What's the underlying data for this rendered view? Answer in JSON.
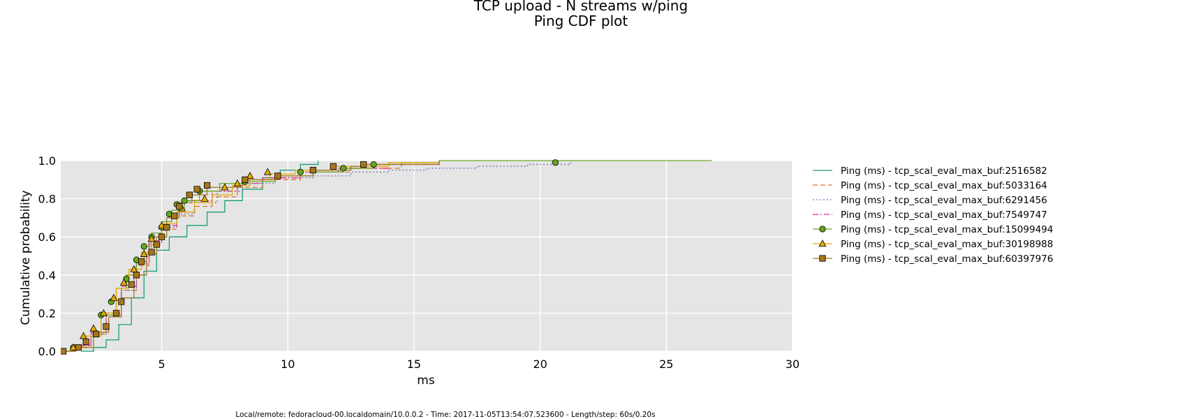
{
  "chart_data": {
    "type": "line",
    "title": "TCP upload - N streams w/ping",
    "subtitle": "Ping CDF plot",
    "xlabel": "ms",
    "ylabel": "Cumulative probability",
    "xlim": [
      1,
      30
    ],
    "ylim": [
      0,
      1
    ],
    "x_ticks": [
      5,
      10,
      15,
      20,
      25,
      30
    ],
    "y_ticks": [
      0.0,
      0.2,
      0.4,
      0.6,
      0.8,
      1.0
    ],
    "x_tick_labels": [
      "5",
      "10",
      "15",
      "20",
      "25",
      "30"
    ],
    "y_tick_labels": [
      "0.0",
      "0.2",
      "0.4",
      "0.6",
      "0.8",
      "1.0"
    ],
    "grid": true,
    "background_color": "#e5e5e5",
    "legend_position": "right-outside",
    "series": [
      {
        "name": "Ping (ms) - tcp_scal_eval_max_buf:2516582",
        "color": "#1b9e77",
        "dash": "solid",
        "marker": "none",
        "points": [
          [
            1.8,
            0.0
          ],
          [
            2.3,
            0.02
          ],
          [
            2.8,
            0.06
          ],
          [
            3.3,
            0.14
          ],
          [
            3.8,
            0.28
          ],
          [
            4.3,
            0.42
          ],
          [
            4.8,
            0.53
          ],
          [
            5.3,
            0.6
          ],
          [
            6.0,
            0.66
          ],
          [
            6.8,
            0.73
          ],
          [
            7.5,
            0.79
          ],
          [
            8.2,
            0.85
          ],
          [
            9.0,
            0.91
          ],
          [
            9.7,
            0.95
          ],
          [
            10.5,
            0.98
          ],
          [
            11.2,
            1.0
          ]
        ]
      },
      {
        "name": "Ping (ms) - tcp_scal_eval_max_buf:5033164",
        "color": "#e1722d",
        "dash": "dashed",
        "marker": "none",
        "points": [
          [
            1.1,
            0.0
          ],
          [
            1.6,
            0.03
          ],
          [
            2.2,
            0.09
          ],
          [
            2.8,
            0.19
          ],
          [
            3.4,
            0.32
          ],
          [
            4.0,
            0.45
          ],
          [
            4.5,
            0.56
          ],
          [
            5.0,
            0.64
          ],
          [
            5.6,
            0.71
          ],
          [
            6.3,
            0.76
          ],
          [
            7.0,
            0.81
          ],
          [
            8.0,
            0.86
          ],
          [
            9.0,
            0.9
          ],
          [
            10.5,
            0.94
          ],
          [
            12.5,
            0.96
          ],
          [
            14.5,
            0.98
          ],
          [
            16.0,
            1.0
          ]
        ]
      },
      {
        "name": "Ping (ms) - tcp_scal_eval_max_buf:6291456",
        "color": "#7570b3",
        "dash": "dotted",
        "marker": "none",
        "points": [
          [
            1.1,
            0.0
          ],
          [
            1.6,
            0.03
          ],
          [
            2.2,
            0.09
          ],
          [
            2.8,
            0.19
          ],
          [
            3.4,
            0.32
          ],
          [
            4.0,
            0.46
          ],
          [
            4.5,
            0.57
          ],
          [
            5.0,
            0.65
          ],
          [
            5.6,
            0.72
          ],
          [
            6.3,
            0.78
          ],
          [
            7.2,
            0.84
          ],
          [
            8.2,
            0.88
          ],
          [
            9.5,
            0.91
          ],
          [
            11.0,
            0.92
          ],
          [
            12.5,
            0.94
          ],
          [
            14.0,
            0.95
          ],
          [
            15.5,
            0.96
          ],
          [
            17.5,
            0.97
          ],
          [
            19.5,
            0.98
          ],
          [
            21.2,
            1.0
          ]
        ]
      },
      {
        "name": "Ping (ms) - tcp_scal_eval_max_buf:7549747",
        "color": "#e7298a",
        "dash": "dashdot",
        "marker": "none",
        "points": [
          [
            1.1,
            0.0
          ],
          [
            1.6,
            0.03
          ],
          [
            2.2,
            0.1
          ],
          [
            2.8,
            0.2
          ],
          [
            3.4,
            0.34
          ],
          [
            4.0,
            0.47
          ],
          [
            4.5,
            0.58
          ],
          [
            5.0,
            0.66
          ],
          [
            5.6,
            0.73
          ],
          [
            6.3,
            0.79
          ],
          [
            7.0,
            0.84
          ],
          [
            8.0,
            0.88
          ],
          [
            9.0,
            0.91
          ],
          [
            10.5,
            0.94
          ],
          [
            12.0,
            0.96
          ],
          [
            14.0,
            0.98
          ],
          [
            16.0,
            1.0
          ]
        ]
      },
      {
        "name": "Ping (ms) - tcp_scal_eval_max_buf:15099494",
        "color": "#66a61e",
        "dash": "solid",
        "marker": "circle",
        "points": [
          [
            1.1,
            0.0
          ],
          [
            1.5,
            0.02
          ],
          [
            2.0,
            0.08
          ],
          [
            2.6,
            0.19
          ],
          [
            3.2,
            0.33
          ],
          [
            3.6,
            0.4
          ],
          [
            4.0,
            0.48
          ],
          [
            4.3,
            0.55
          ],
          [
            4.6,
            0.62
          ],
          [
            5.0,
            0.68
          ],
          [
            5.4,
            0.74
          ],
          [
            5.9,
            0.79
          ],
          [
            6.5,
            0.84
          ],
          [
            7.3,
            0.88
          ],
          [
            8.3,
            0.89
          ],
          [
            9.5,
            0.92
          ],
          [
            11.0,
            0.94
          ],
          [
            12.2,
            0.96
          ],
          [
            13.4,
            0.98
          ],
          [
            14.5,
            0.99
          ],
          [
            16.0,
            1.0
          ],
          [
            20.6,
            1.0
          ],
          [
            26.8,
            1.0
          ]
        ],
        "marker_points": [
          [
            1.5,
            0.02
          ],
          [
            2.6,
            0.19
          ],
          [
            3.0,
            0.26
          ],
          [
            3.6,
            0.38
          ],
          [
            4.0,
            0.48
          ],
          [
            4.3,
            0.55
          ],
          [
            4.6,
            0.6
          ],
          [
            5.0,
            0.65
          ],
          [
            5.3,
            0.72
          ],
          [
            5.6,
            0.77
          ],
          [
            5.9,
            0.79
          ],
          [
            6.5,
            0.84
          ],
          [
            8.3,
            0.89
          ],
          [
            9.6,
            0.92
          ],
          [
            10.5,
            0.94
          ],
          [
            12.2,
            0.96
          ],
          [
            13.4,
            0.98
          ],
          [
            20.6,
            0.99
          ]
        ]
      },
      {
        "name": "Ping (ms) - tcp_scal_eval_max_buf:30198988",
        "color": "#e6ab02",
        "dash": "solid",
        "marker": "triangle",
        "points": [
          [
            1.1,
            0.0
          ],
          [
            1.5,
            0.02
          ],
          [
            2.0,
            0.08
          ],
          [
            2.6,
            0.2
          ],
          [
            3.2,
            0.33
          ],
          [
            3.7,
            0.43
          ],
          [
            4.2,
            0.52
          ],
          [
            4.6,
            0.6
          ],
          [
            5.0,
            0.67
          ],
          [
            5.6,
            0.73
          ],
          [
            6.3,
            0.78
          ],
          [
            7.0,
            0.82
          ],
          [
            7.8,
            0.87
          ],
          [
            8.5,
            0.9
          ],
          [
            9.3,
            0.93
          ],
          [
            10.3,
            0.95
          ],
          [
            11.8,
            0.97
          ],
          [
            14.0,
            0.99
          ],
          [
            16.0,
            1.0
          ]
        ],
        "marker_points": [
          [
            1.5,
            0.02
          ],
          [
            1.9,
            0.08
          ],
          [
            2.3,
            0.12
          ],
          [
            2.7,
            0.2
          ],
          [
            3.1,
            0.28
          ],
          [
            3.5,
            0.36
          ],
          [
            3.9,
            0.43
          ],
          [
            4.3,
            0.51
          ],
          [
            4.6,
            0.59
          ],
          [
            5.0,
            0.66
          ],
          [
            5.8,
            0.75
          ],
          [
            6.7,
            0.8
          ],
          [
            7.5,
            0.86
          ],
          [
            8.0,
            0.88
          ],
          [
            8.5,
            0.92
          ],
          [
            9.2,
            0.94
          ]
        ]
      },
      {
        "name": "Ping (ms) - tcp_scal_eval_max_buf:60397976",
        "color": "#a6761d",
        "dash": "solid",
        "marker": "square",
        "points": [
          [
            1.1,
            0.0
          ],
          [
            1.6,
            0.02
          ],
          [
            2.3,
            0.1
          ],
          [
            2.9,
            0.18
          ],
          [
            3.4,
            0.28
          ],
          [
            3.9,
            0.4
          ],
          [
            4.4,
            0.51
          ],
          [
            4.8,
            0.6
          ],
          [
            5.2,
            0.7
          ],
          [
            5.7,
            0.78
          ],
          [
            6.2,
            0.82
          ],
          [
            6.8,
            0.86
          ],
          [
            8.2,
            0.9
          ],
          [
            9.5,
            0.92
          ],
          [
            11.0,
            0.95
          ],
          [
            12.5,
            0.97
          ],
          [
            13.0,
            0.98
          ],
          [
            16.0,
            1.0
          ]
        ],
        "marker_points": [
          [
            1.1,
            0.0
          ],
          [
            1.7,
            0.02
          ],
          [
            2.0,
            0.05
          ],
          [
            2.4,
            0.09
          ],
          [
            2.8,
            0.13
          ],
          [
            3.2,
            0.2
          ],
          [
            3.4,
            0.26
          ],
          [
            3.8,
            0.35
          ],
          [
            4.0,
            0.4
          ],
          [
            4.2,
            0.47
          ],
          [
            4.6,
            0.52
          ],
          [
            4.8,
            0.56
          ],
          [
            5.0,
            0.6
          ],
          [
            5.2,
            0.65
          ],
          [
            5.5,
            0.71
          ],
          [
            5.7,
            0.76
          ],
          [
            6.1,
            0.82
          ],
          [
            6.4,
            0.85
          ],
          [
            6.8,
            0.87
          ],
          [
            8.3,
            0.9
          ],
          [
            9.6,
            0.92
          ],
          [
            11.0,
            0.95
          ],
          [
            11.8,
            0.97
          ],
          [
            13.0,
            0.98
          ]
        ]
      }
    ]
  },
  "footer": "Local/remote: fedoracloud-00.localdomain/10.0.0.2 - Time: 2017-11-05T13:54:07.523600 - Length/step: 60s/0.20s"
}
